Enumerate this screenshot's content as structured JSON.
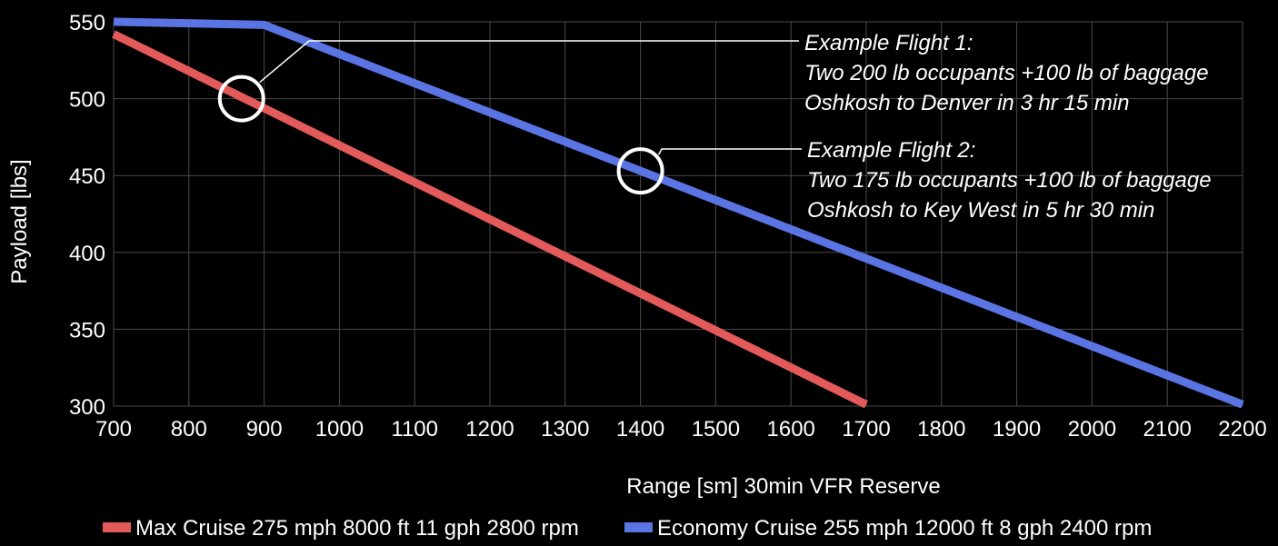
{
  "chart_data": {
    "type": "line",
    "title": "",
    "xlabel": "Range [sm] 30min VFR Reserve",
    "ylabel": "Payload [lbs]",
    "xlim": [
      700,
      2200
    ],
    "ylim": [
      300,
      550
    ],
    "xticks": [
      700,
      800,
      900,
      1000,
      1100,
      1200,
      1300,
      1400,
      1500,
      1600,
      1700,
      1800,
      1900,
      2000,
      2100,
      2200
    ],
    "yticks": [
      300,
      350,
      400,
      450,
      500,
      550
    ],
    "grid": true,
    "legend_position": "bottom",
    "series": [
      {
        "name": "Max Cruise 275 mph 8000 ft 11 gph 2800 rpm",
        "color": "#e35a5a",
        "x": [
          700,
          1700
        ],
        "y": [
          542,
          301
        ]
      },
      {
        "name": "Economy Cruise 255 mph 12000 ft 8 gph 2400 rpm",
        "color": "#5b74e4",
        "x": [
          700,
          900,
          2200
        ],
        "y": [
          550,
          548,
          301
        ]
      }
    ],
    "annotations": [
      {
        "name": "example-flight-1",
        "point": [
          870,
          500
        ],
        "lines": [
          "Example Flight 1:",
          "Two 200 lb occupants +100 lb of baggage",
          "Oshkosh to Denver in 3 hr 15 min"
        ]
      },
      {
        "name": "example-flight-2",
        "point": [
          1400,
          453
        ],
        "lines": [
          "Example Flight 2:",
          "Two 175 lb occupants +100 lb of baggage",
          "Oshkosh to Key West in 5 hr 30 min"
        ]
      }
    ]
  }
}
